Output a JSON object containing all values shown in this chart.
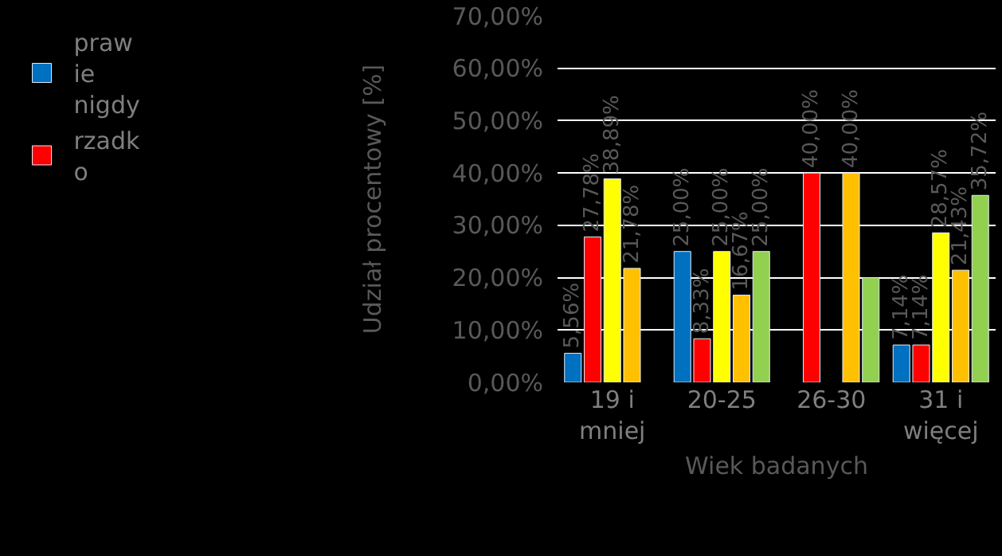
{
  "chart_data": {
    "type": "bar",
    "categories": [
      "19 i\nmniej",
      "20-25",
      "26-30",
      "31 i\nwięcej"
    ],
    "series": [
      {
        "name": "praw\nie\nnigdy",
        "color": "#0070c0",
        "values": [
          5.56,
          25.0,
          null,
          7.14
        ],
        "value_labels": [
          "5,56%",
          "25,00%",
          null,
          "7,14%"
        ]
      },
      {
        "name": "rzadk\no",
        "color": "#ff0000",
        "values": [
          27.78,
          8.33,
          40.0,
          7.14
        ],
        "value_labels": [
          "27,78%",
          "8,33%",
          "40,00%",
          "7,14%"
        ]
      },
      {
        "color": "#ffff00",
        "values": [
          38.89,
          25.0,
          null,
          28.57
        ],
        "value_labels": [
          "38,89%",
          "25,00%",
          null,
          "28,57%"
        ]
      },
      {
        "color": "#ffc000",
        "values": [
          21.78,
          16.67,
          40.0,
          21.43
        ],
        "value_labels": [
          "21,78%",
          "16,67%",
          "40,00%",
          "21,43%"
        ]
      },
      {
        "color": "#92d050",
        "values": [
          null,
          25.0,
          20.0,
          35.72
        ],
        "value_labels": [
          null,
          "25,00%",
          null,
          "35,72%"
        ]
      }
    ],
    "xlabel": "Wiek badanych",
    "ylabel": "Udział procentowy [%]",
    "ylim": [
      0,
      70
    ],
    "yticks": [
      {
        "value": 0,
        "label": "0,00%"
      },
      {
        "value": 10,
        "label": "10,00%"
      },
      {
        "value": 20,
        "label": "20,00%"
      },
      {
        "value": 30,
        "label": "30,00%"
      },
      {
        "value": 40,
        "label": "40,00%"
      },
      {
        "value": 50,
        "label": "50,00%"
      },
      {
        "value": 60,
        "label": "60,00%"
      },
      {
        "value": 70,
        "label": "70,00%"
      }
    ],
    "grid": "y",
    "legend": "left"
  }
}
